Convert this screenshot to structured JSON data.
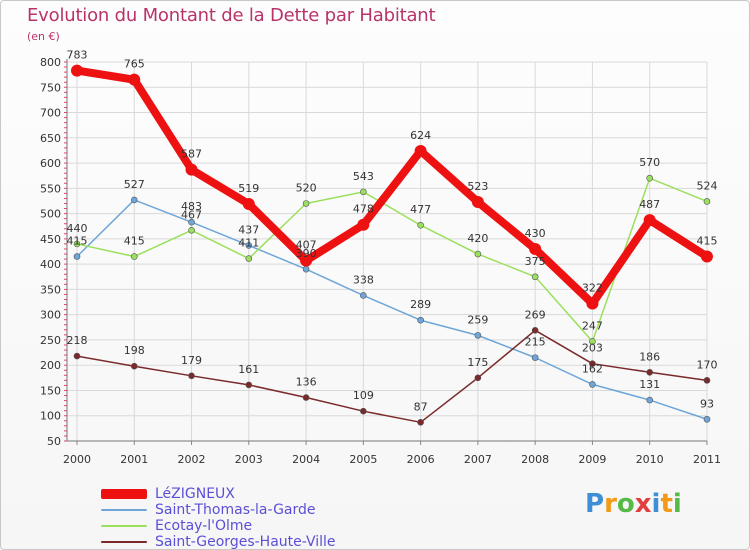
{
  "header": {
    "title": "Evolution du Montant de la Dette par Habitant",
    "unit": "(en €)"
  },
  "chart_data": {
    "type": "line",
    "title": "Evolution du Montant de la Dette par Habitant",
    "ylabel": "(en €)",
    "xlabel": "",
    "x": [
      "2000",
      "2001",
      "2002",
      "2003",
      "2004",
      "2005",
      "2006",
      "2007",
      "2008",
      "2009",
      "2010",
      "2011"
    ],
    "ylim": [
      50,
      800
    ],
    "yticks": [
      50,
      100,
      150,
      200,
      250,
      300,
      350,
      400,
      450,
      500,
      550,
      600,
      650,
      700,
      750,
      800
    ],
    "grid": true,
    "legend_position": "bottom-left",
    "series": [
      {
        "name": "LéZIGNEUX",
        "color": "#ee1111",
        "values": [
          783,
          765,
          587,
          519,
          407,
          478,
          624,
          523,
          430,
          322,
          487,
          415
        ]
      },
      {
        "name": "Saint-Thomas-la-Garde",
        "color": "#6ea6d8",
        "values": [
          415,
          527,
          483,
          437,
          390,
          338,
          289,
          259,
          215,
          162,
          131,
          93
        ]
      },
      {
        "name": "Ecotay-l'Olme",
        "color": "#9be05c",
        "values": [
          440,
          415,
          467,
          411,
          520,
          543,
          477,
          420,
          375,
          247,
          570,
          524
        ]
      },
      {
        "name": "Saint-Georges-Haute-Ville",
        "color": "#7a2a2a",
        "values": [
          218,
          198,
          179,
          161,
          136,
          109,
          87,
          175,
          269,
          203,
          186,
          170
        ]
      }
    ],
    "data_labels": [
      [
        783,
        765,
        587,
        519,
        407,
        478,
        624,
        523,
        430,
        322,
        487,
        415
      ],
      [
        415,
        527,
        483,
        437,
        390,
        338,
        289,
        259,
        215,
        162,
        131,
        93
      ],
      [
        440,
        415,
        467,
        411,
        520,
        543,
        477,
        420,
        375,
        247,
        570,
        524
      ],
      [
        218,
        198,
        179,
        161,
        136,
        109,
        87,
        175,
        269,
        203,
        186,
        170
      ]
    ]
  },
  "legend": {
    "items": [
      "LéZIGNEUX",
      "Saint-Thomas-la-Garde",
      "Ecotay-l'Olme",
      "Saint-Georges-Haute-Ville"
    ]
  },
  "brand": {
    "letters": [
      "P",
      "r",
      "o",
      "x",
      "i",
      "t",
      "i"
    ],
    "colors": [
      "#3f8fd6",
      "#f29a16",
      "#56b948",
      "#e23f3f",
      "#3f8fd6",
      "#f29a16",
      "#56b948"
    ]
  }
}
